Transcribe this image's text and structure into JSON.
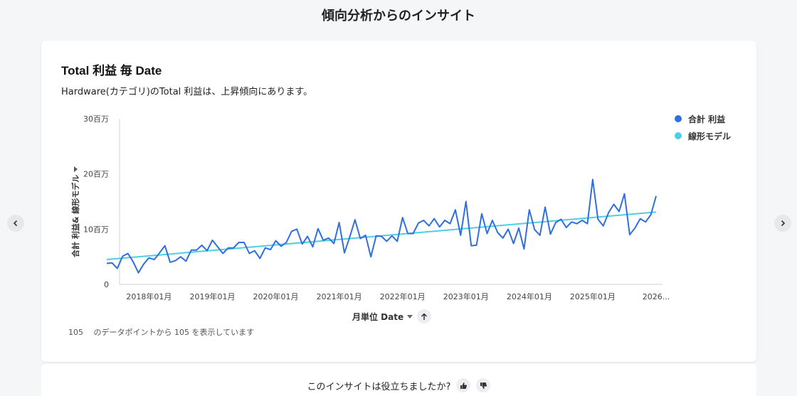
{
  "page": {
    "title": "傾向分析からのインサイト"
  },
  "card": {
    "title": "Total 利益 毎 Date",
    "subtitle": "Hardware(カテゴリ)のTotal 利益は、上昇傾向にあります。",
    "footnote": "105 　のデータポイントから 105 を表示しています"
  },
  "feedback": {
    "question": "このインサイトは役立ちましたか?"
  },
  "colors": {
    "actual": "#2f6fe0",
    "trend": "#4dcfe3"
  },
  "icons": {
    "prev": "chevron-left-icon",
    "next": "chevron-right-icon",
    "sort": "arrow-up-icon",
    "like": "thumbs-up-icon",
    "dislike": "thumbs-down-icon"
  },
  "chart_data": {
    "type": "line",
    "xlabel": "月単位 Date",
    "ylabel": "合計 利益& 線形モデル",
    "x_tick_labels": [
      "2018年01月",
      "2019年01月",
      "2020年01月",
      "2021年01月",
      "2022年01月",
      "2023年01月",
      "2024年01月",
      "2025年01月",
      "2026..."
    ],
    "y_tick_labels": [
      "0",
      "10百万",
      "20百万",
      "30百万"
    ],
    "ylim": [
      0,
      30
    ],
    "y_unit": "百万",
    "grid": false,
    "legend_position": "top-right",
    "x_start": "2017年05月",
    "series": [
      {
        "name": "合計 利益",
        "values": [
          3.8,
          3.9,
          2.9,
          5.1,
          5.6,
          4.1,
          2.1,
          3.7,
          4.8,
          4.5,
          5.7,
          7.0,
          4.0,
          4.3,
          5.0,
          4.2,
          6.2,
          6.2,
          7.1,
          6.1,
          8.0,
          6.8,
          5.6,
          6.6,
          6.6,
          7.6,
          7.6,
          5.6,
          6.1,
          4.7,
          6.6,
          6.3,
          7.9,
          6.9,
          7.6,
          9.6,
          10.0,
          7.3,
          8.7,
          6.8,
          10.1,
          8.0,
          8.4,
          7.4,
          11.2,
          5.7,
          8.6,
          11.7,
          8.3,
          8.9,
          5.0,
          8.8,
          8.7,
          7.8,
          8.8,
          7.8,
          12.1,
          9.2,
          9.2,
          11.1,
          11.6,
          10.6,
          11.9,
          10.4,
          11.6,
          11.0,
          13.5,
          8.9,
          15.0,
          7.0,
          7.1,
          12.8,
          9.2,
          11.6,
          9.4,
          8.4,
          10.0,
          7.4,
          10.2,
          6.4,
          13.5,
          9.9,
          8.9,
          14.0,
          9.1,
          11.2,
          11.8,
          10.3,
          11.3,
          11.0,
          11.6,
          11.0,
          19.0,
          11.8,
          10.6,
          13.0,
          14.5,
          13.2,
          16.4,
          9.0,
          10.2,
          11.9,
          11.3,
          12.6,
          16.0
        ]
      },
      {
        "name": "線形モデル",
        "values_start": 4.5,
        "values_end": 13.1
      }
    ]
  }
}
